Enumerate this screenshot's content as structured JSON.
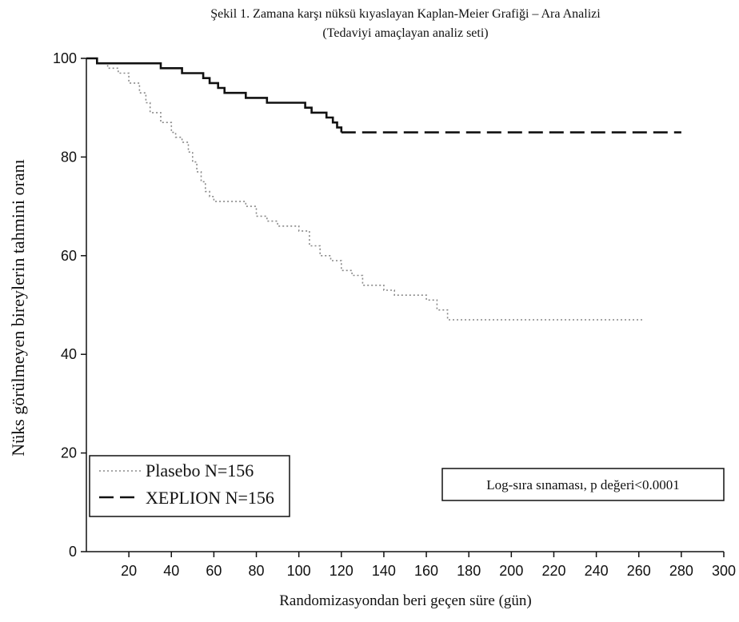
{
  "chart_data": {
    "type": "line",
    "title": "Şekil 1. Zamana karşı nüksü kıyaslayan Kaplan-Meier Grafiği – Ara Analizi",
    "subtitle": "(Tedaviyi amaçlayan analiz seti)",
    "xlabel": "Randomizasyondan beri geçen süre (gün)",
    "ylabel": "Nüks görülmeyen bireylerin tahmini oranı",
    "xlim": [
      0,
      300
    ],
    "ylim": [
      0,
      100
    ],
    "x_ticks": [
      20,
      40,
      60,
      80,
      100,
      120,
      140,
      160,
      180,
      200,
      220,
      240,
      260,
      280,
      300
    ],
    "y_ticks": [
      0,
      20,
      40,
      60,
      80,
      100
    ],
    "grid": false,
    "legend_position": "bottom-left",
    "annotation": "Log-sıra sınaması, p değeri<0.0001",
    "series": [
      {
        "name": "Plasebo N=156",
        "style": "dotted",
        "color": "#888888",
        "x": [
          0,
          5,
          10,
          15,
          20,
          25,
          28,
          30,
          35,
          40,
          42,
          45,
          48,
          50,
          52,
          54,
          56,
          58,
          60,
          65,
          70,
          75,
          80,
          85,
          90,
          95,
          100,
          105,
          110,
          115,
          120,
          125,
          130,
          135,
          140,
          145,
          150,
          155,
          160,
          165,
          170,
          175,
          180,
          190,
          200,
          220,
          240,
          262
        ],
        "y": [
          100,
          99,
          98,
          97,
          95,
          93,
          91,
          89,
          87,
          85,
          84,
          83,
          81,
          79,
          77,
          75,
          73,
          72,
          71,
          71,
          71,
          70,
          68,
          67,
          66,
          66,
          65,
          62,
          60,
          59,
          57,
          56,
          54,
          54,
          53,
          52,
          52,
          52,
          51,
          49,
          47,
          47,
          47,
          47,
          47,
          47,
          47,
          47
        ]
      },
      {
        "name": "XEPLION N=156",
        "style": "solid-then-dashed",
        "color": "#111111",
        "x": [
          0,
          5,
          10,
          20,
          25,
          30,
          35,
          40,
          45,
          50,
          55,
          58,
          62,
          65,
          70,
          75,
          80,
          85,
          90,
          95,
          100,
          103,
          106,
          110,
          113,
          116,
          118,
          120,
          130,
          150,
          170,
          200,
          230,
          260,
          280
        ],
        "y": [
          100,
          99,
          99,
          99,
          99,
          99,
          98,
          98,
          97,
          97,
          96,
          95,
          94,
          93,
          93,
          92,
          92,
          91,
          91,
          91,
          91,
          90,
          89,
          89,
          88,
          87,
          86,
          85,
          85,
          85,
          85,
          85,
          85,
          85,
          85
        ]
      }
    ]
  }
}
